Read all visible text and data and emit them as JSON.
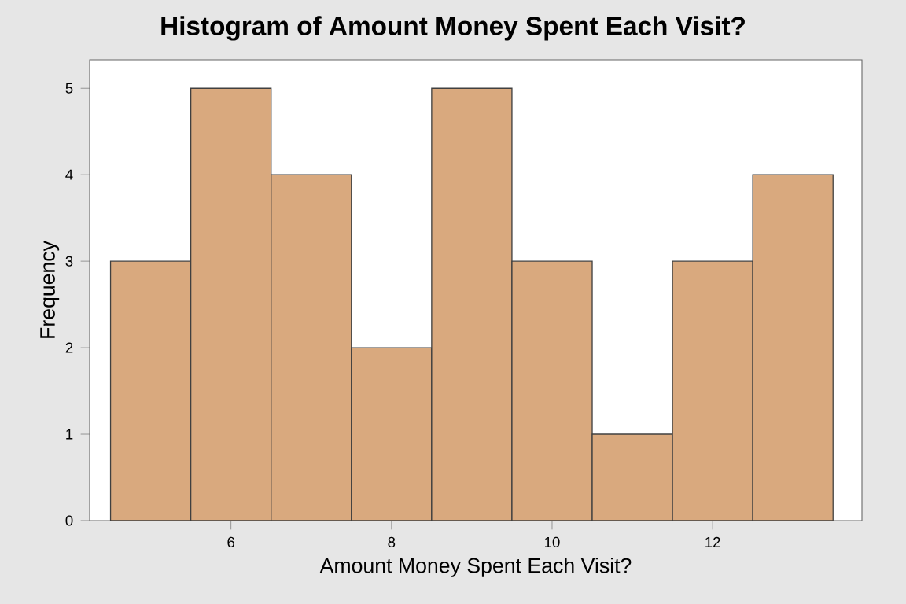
{
  "chart_data": {
    "type": "histogram",
    "title": "Histogram of Amount Money Spent Each Visit?",
    "xlabel": "Amount Money Spent Each Visit?",
    "ylabel": "Frequency",
    "bins": [
      4.5,
      5.5,
      6.5,
      7.5,
      8.5,
      9.5,
      10.5,
      11.5,
      12.5,
      13.5
    ],
    "values": [
      3,
      5,
      4,
      2,
      5,
      3,
      1,
      3,
      4
    ],
    "color": "#d9a97e",
    "xlim": [
      4.24,
      13.86
    ],
    "ylim": [
      0,
      5.33
    ],
    "xticks": [
      6,
      8,
      10,
      12
    ],
    "yticks": [
      0,
      1,
      2,
      3,
      4,
      5
    ]
  }
}
